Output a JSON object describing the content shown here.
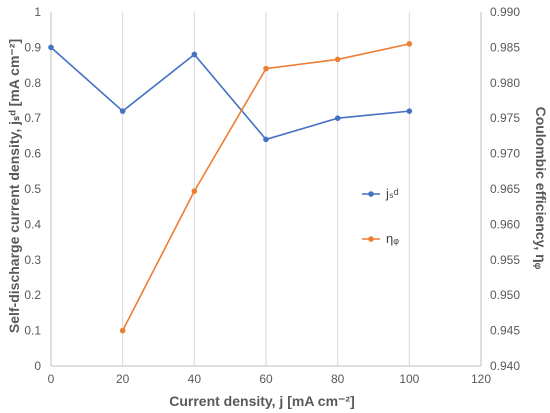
{
  "chart_data": {
    "type": "line",
    "x": [
      0,
      20,
      40,
      60,
      80,
      100
    ],
    "xlim": [
      0,
      120
    ],
    "xticks": [
      "0",
      "20",
      "40",
      "60",
      "80",
      "100",
      "120"
    ],
    "xlabel": "Current density, j [mA cm⁻²]",
    "ylabel_left": "Self-discharge current density, jₛᵈ [mA cm⁻²]",
    "ylabel_right": "Coulombic efficiency, ηᵩ",
    "ylim_left": [
      0,
      1
    ],
    "ylim_right": [
      0.94,
      0.99
    ],
    "yticks_left": [
      "0",
      "0.1",
      "0.2",
      "0.3",
      "0.4",
      "0.5",
      "0.6",
      "0.7",
      "0.8",
      "0.9",
      "1"
    ],
    "yticks_right": [
      "0.940",
      "0.945",
      "0.950",
      "0.955",
      "0.960",
      "0.965",
      "0.970",
      "0.975",
      "0.980",
      "0.985",
      "0.990"
    ],
    "grid": "vertical",
    "legend_position": "right-middle",
    "series": [
      {
        "name": "jₛᵈ",
        "axis": "left",
        "color": "#4472C4",
        "x": [
          0,
          20,
          40,
          60,
          80,
          100
        ],
        "values": [
          0.9,
          0.72,
          0.88,
          0.64,
          0.7,
          0.72
        ]
      },
      {
        "name": "ηᵩ",
        "axis": "right",
        "color": "#ED7D31",
        "x": [
          20,
          40,
          60,
          80,
          100
        ],
        "values": [
          0.945,
          0.9647,
          0.982,
          0.9833,
          0.9855
        ]
      }
    ]
  }
}
